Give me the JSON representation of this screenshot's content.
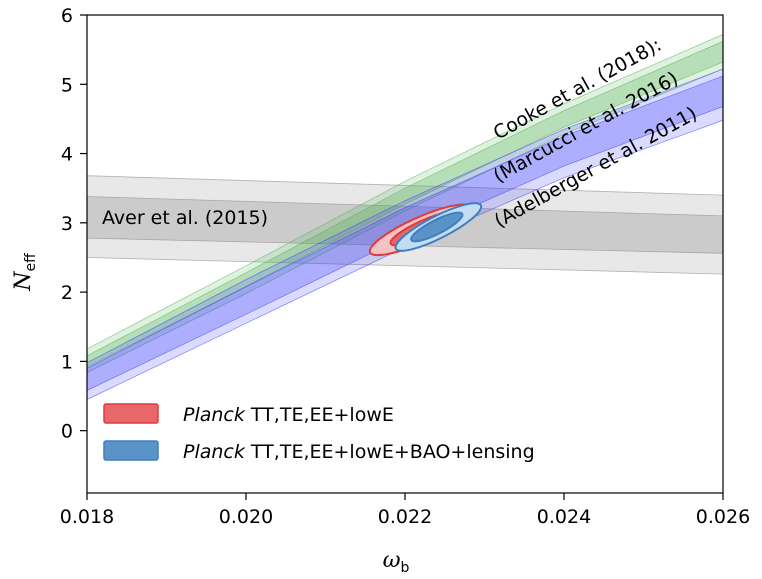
{
  "chart_data": {
    "type": "contour",
    "xlabel": "ω",
    "xlabel_sub": "b",
    "ylabel": "N",
    "ylabel_sub": "eff",
    "xlim": [
      0.018,
      0.026
    ],
    "ylim": [
      -0.9,
      6
    ],
    "x_ticks": [
      0.018,
      0.02,
      0.022,
      0.024,
      0.026
    ],
    "x_tick_labels": [
      "0.018",
      "0.020",
      "0.022",
      "0.024",
      "0.026"
    ],
    "y_ticks": [
      0,
      1,
      2,
      3,
      4,
      5,
      6
    ],
    "y_tick_labels": [
      "0",
      "1",
      "2",
      "3",
      "4",
      "5",
      "6"
    ],
    "bands": [
      {
        "name": "aver",
        "label": "Aver et al. (2015)",
        "color": "#808080",
        "inner": {
          "upper": [
            [
              0.018,
              3.38
            ],
            [
              0.026,
              3.1
            ]
          ],
          "lower": [
            [
              0.018,
              2.78
            ],
            [
              0.026,
              2.56
            ]
          ]
        },
        "outer": {
          "upper": [
            [
              0.018,
              3.68
            ],
            [
              0.026,
              3.4
            ]
          ],
          "lower": [
            [
              0.018,
              2.5
            ],
            [
              0.026,
              2.26
            ]
          ]
        }
      },
      {
        "name": "marcucci",
        "label": "(Marcucci et al. 2016)",
        "color": "#4caf50",
        "inner": {
          "upper": [
            [
              0.018,
              1.08
            ],
            [
              0.02,
              2.28
            ],
            [
              0.022,
              3.5
            ],
            [
              0.024,
              4.62
            ],
            [
              0.026,
              5.62
            ]
          ],
          "lower": [
            [
              0.018,
              0.92
            ],
            [
              0.02,
              2.08
            ],
            [
              0.022,
              3.27
            ],
            [
              0.024,
              4.38
            ],
            [
              0.026,
              5.32
            ]
          ]
        },
        "outer": {
          "upper": [
            [
              0.018,
              1.18
            ],
            [
              0.02,
              2.38
            ],
            [
              0.022,
              3.6
            ],
            [
              0.024,
              4.72
            ],
            [
              0.026,
              5.72
            ]
          ],
          "lower": [
            [
              0.018,
              0.84
            ],
            [
              0.02,
              1.98
            ],
            [
              0.022,
              3.17
            ],
            [
              0.024,
              4.28
            ],
            [
              0.026,
              5.22
            ]
          ]
        }
      },
      {
        "name": "adelberger",
        "label": "(Adelberger et al. 2011)",
        "color": "#3a3aff",
        "inner": {
          "upper": [
            [
              0.018,
              0.9
            ],
            [
              0.02,
              2.08
            ],
            [
              0.022,
              3.22
            ],
            [
              0.024,
              4.25
            ],
            [
              0.026,
              5.12
            ]
          ],
          "lower": [
            [
              0.018,
              0.58
            ],
            [
              0.02,
              1.68
            ],
            [
              0.022,
              2.8
            ],
            [
              0.024,
              3.82
            ],
            [
              0.026,
              4.68
            ]
          ]
        },
        "outer": {
          "upper": [
            [
              0.018,
              0.98
            ],
            [
              0.02,
              2.18
            ],
            [
              0.022,
              3.32
            ],
            [
              0.024,
              4.35
            ],
            [
              0.026,
              5.22
            ]
          ],
          "lower": [
            [
              0.018,
              0.45
            ],
            [
              0.02,
              1.55
            ],
            [
              0.022,
              2.65
            ],
            [
              0.024,
              3.65
            ],
            [
              0.026,
              4.48
            ]
          ]
        }
      }
    ],
    "annotations": {
      "cooke": "Cooke et al. (2018):",
      "marcucci": "(Marcucci et al. 2016)",
      "adelberger": "(Adelberger et al. 2011)",
      "aver": "Aver et al. (2015)"
    },
    "contours": [
      {
        "name": "planck-tt-te-ee-lowe",
        "color_fill": "#e8686a",
        "color_edge": "#e03a3c",
        "outer": {
          "cx": 0.0222,
          "cy": 2.9,
          "rx": 0.0007,
          "ry": 0.18,
          "angle_deg": -24
        },
        "inner": {
          "cx": 0.02225,
          "cy": 2.92,
          "rx": 0.00047,
          "ry": 0.12,
          "angle_deg": -24
        }
      },
      {
        "name": "planck-bao-lensing",
        "color_fill": "#5a93c8",
        "color_edge": "#3d7fc2",
        "outer": {
          "cx": 0.02242,
          "cy": 2.94,
          "rx": 0.0006,
          "ry": 0.16,
          "angle_deg": -27
        },
        "inner": {
          "cx": 0.0224,
          "cy": 2.94,
          "rx": 0.00036,
          "ry": 0.1,
          "angle_deg": -27
        }
      }
    ],
    "legend": [
      {
        "italic": "Planck",
        "text": " TT,TE,EE+lowE",
        "color": "#e8686a",
        "edge": "#e03a3c"
      },
      {
        "italic": "Planck",
        "text": " TT,TE,EE+lowE+BAO+lensing",
        "color": "#5a93c8",
        "edge": "#3d7fc2"
      }
    ]
  }
}
